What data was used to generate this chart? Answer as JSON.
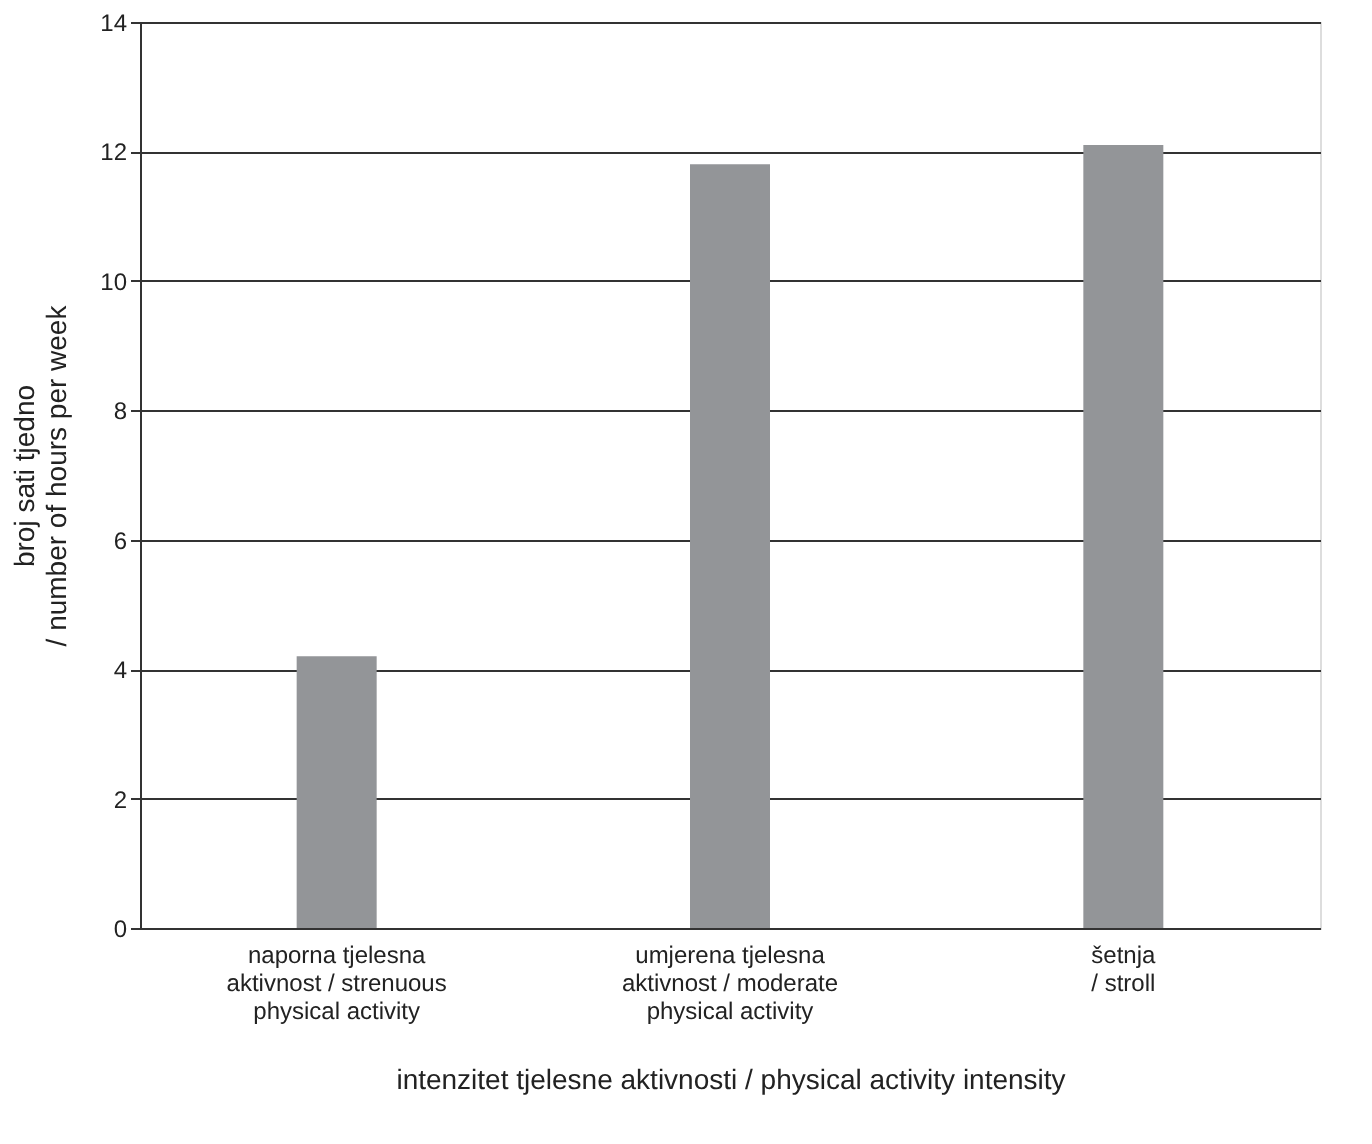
{
  "chart_data": {
    "type": "bar",
    "xlabel": "intenzitet tjelesne aktivnosti / physical activity intensity",
    "ylabel": "broj sati tjedno\n/ number of hours per week",
    "categories": [
      "naporna tjelesna\naktivnost / strenuous\nphysical activity",
      "umjerena tjelesna\naktivnost / moderate\nphysical activity",
      "šetnja\n/ stroll"
    ],
    "values": [
      4.2,
      11.8,
      12.1
    ],
    "color": "#939598",
    "ylim": [
      0,
      14
    ],
    "yticks": [
      0,
      2,
      4,
      6,
      8,
      10,
      12,
      14
    ],
    "grid": "y"
  }
}
